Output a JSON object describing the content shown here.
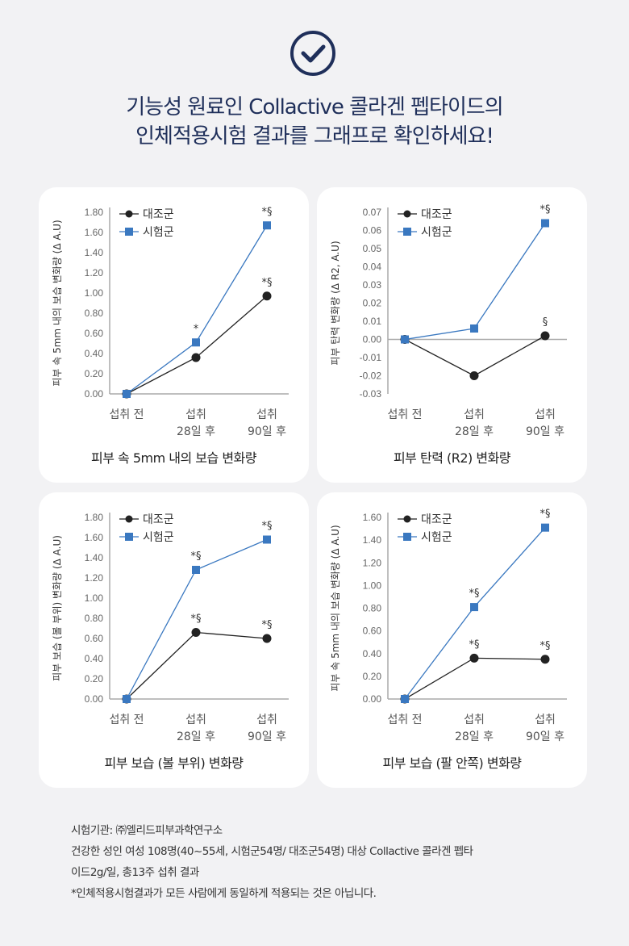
{
  "header": {
    "icon": "check-circle-icon",
    "line1": "기능성 원료인 Collactive 콜라겐 펩타이드의",
    "line2": "인체적용시험 결과를 그래프로 확인하세요!",
    "color": "#1f2f5a"
  },
  "legend": {
    "control": "대조군",
    "test": "시험군"
  },
  "colors": {
    "control": "#222222",
    "test": "#3a78c0"
  },
  "chart_data": [
    {
      "type": "line",
      "title": "피부 속 5mm 내의 보습 변화량",
      "ylabel": "피부 속 5mm 내의 보습 변화량 (Δ A.U)",
      "categories": [
        [
          "섭취 전",
          ""
        ],
        [
          "섭취",
          "28일 후"
        ],
        [
          "섭취",
          "90일 후"
        ]
      ],
      "ylim": [
        0,
        1.8
      ],
      "yticks": [
        "1.80",
        "1.60",
        "1.40",
        "1.20",
        "1.00",
        "0.80",
        "0.60",
        "0.40",
        "0.20",
        "0.00"
      ],
      "series": [
        {
          "name": "대조군",
          "values": [
            0,
            0.36,
            0.97
          ],
          "annotations": [
            "",
            "",
            "*§"
          ]
        },
        {
          "name": "시험군",
          "values": [
            0,
            0.51,
            1.67
          ],
          "annotations": [
            "",
            "*",
            "*§"
          ]
        }
      ],
      "legend": "top-left"
    },
    {
      "type": "line",
      "title": "피부 탄력 (R2) 변화량",
      "ylabel": "피부 탄력 변화량 (Δ R2, A.U)",
      "categories": [
        [
          "섭취 전",
          ""
        ],
        [
          "섭취",
          "28일 후"
        ],
        [
          "섭취",
          "90일 후"
        ]
      ],
      "ylim": [
        -0.03,
        0.07
      ],
      "yticks": [
        "0.07",
        "0.06",
        "0.05",
        "0.04",
        "0.03",
        "0.02",
        "0.01",
        "0.00",
        "-0.01",
        "-0.02",
        "-0.03"
      ],
      "series": [
        {
          "name": "대조군",
          "values": [
            0,
            -0.02,
            0.002
          ],
          "annotations": [
            "",
            "",
            "§"
          ]
        },
        {
          "name": "시험군",
          "values": [
            0,
            0.006,
            0.064
          ],
          "annotations": [
            "",
            "",
            "*§"
          ]
        }
      ],
      "legend": "top-left"
    },
    {
      "type": "line",
      "title": "피부 보습 (볼 부위) 변화량",
      "ylabel": "피부 보습 (볼 부위) 변화량 (Δ A.U)",
      "categories": [
        [
          "섭취 전",
          ""
        ],
        [
          "섭취",
          "28일 후"
        ],
        [
          "섭취",
          "90일 후"
        ]
      ],
      "ylim": [
        0,
        1.8
      ],
      "yticks": [
        "1.80",
        "1.60",
        "1.40",
        "1.20",
        "1.00",
        "0.80",
        "0.60",
        "0.40",
        "0.20",
        "0.00"
      ],
      "series": [
        {
          "name": "대조군",
          "values": [
            0,
            0.66,
            0.6
          ],
          "annotations": [
            "",
            "*§",
            "*§"
          ]
        },
        {
          "name": "시험군",
          "values": [
            0,
            1.28,
            1.58
          ],
          "annotations": [
            "",
            "*§",
            "*§"
          ]
        }
      ],
      "legend": "top-left"
    },
    {
      "type": "line",
      "title": "피부 보습 (팔 안쪽) 변화량",
      "ylabel": "피부 속 5mm 내의 보습 변화량 (Δ A.U)",
      "categories": [
        [
          "섭취 전",
          ""
        ],
        [
          "섭취",
          "28일 후"
        ],
        [
          "섭취",
          "90일 후"
        ]
      ],
      "ylim": [
        0,
        1.6
      ],
      "yticks": [
        "1.60",
        "1.40",
        "1.20",
        "1.00",
        "0.80",
        "0.60",
        "0.40",
        "0.20",
        "0.00"
      ],
      "series": [
        {
          "name": "대조군",
          "values": [
            0,
            0.36,
            0.35
          ],
          "annotations": [
            "",
            "*§",
            "*§"
          ]
        },
        {
          "name": "시험군",
          "values": [
            0,
            0.81,
            1.51
          ],
          "annotations": [
            "",
            "*§",
            "*§"
          ]
        }
      ],
      "legend": "top-left"
    }
  ],
  "footer": {
    "line1": "시험기관: ㈜엘리드피부과학연구소",
    "line2": "건강한 성인 여성 108명(40~55세, 시험군54명/ 대조군54명) 대상 Collactive 콜라겐 펩타",
    "line3": "이드2g/일, 총13주 섭취 결과",
    "line4": "*인체적용시험결과가 모든 사람에게 동일하게 적용되는 것은 아닙니다."
  }
}
